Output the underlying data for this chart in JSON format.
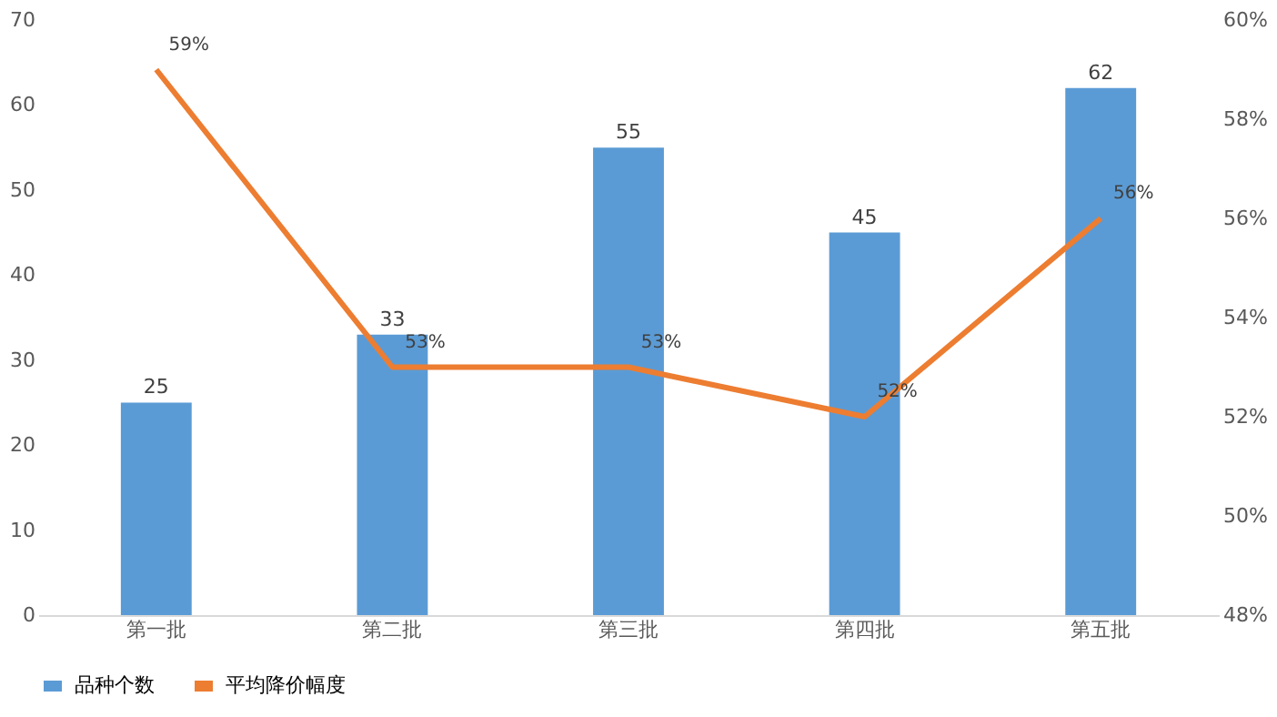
{
  "chart_data": {
    "type": "bar",
    "categories": [
      "第一批",
      "第二批",
      "第三批",
      "第四批",
      "第五批"
    ],
    "series": [
      {
        "name": "品种个数",
        "color": "#5b9bd5",
        "values": [
          25,
          33,
          55,
          45,
          62
        ],
        "value_labels": [
          "25",
          "33",
          "55",
          "45",
          "62"
        ]
      },
      {
        "name": "平均降价幅度",
        "type": "line",
        "axis": "y2",
        "color": "#ed7d31",
        "values": [
          59,
          53,
          53,
          52,
          56
        ],
        "value_labels": [
          "59%",
          "53%",
          "53%",
          "52%",
          "56%"
        ]
      }
    ],
    "ylim": [
      0,
      70
    ],
    "yticks": [
      0,
      10,
      20,
      30,
      40,
      50,
      60,
      70
    ],
    "y2lim": [
      48,
      60
    ],
    "y2ticks": [
      {
        "value": 48,
        "label": "48%"
      },
      {
        "value": 50,
        "label": "50%"
      },
      {
        "value": 52,
        "label": "52%"
      },
      {
        "value": 54,
        "label": "54%"
      },
      {
        "value": 56,
        "label": "56%"
      },
      {
        "value": 58,
        "label": "58%"
      },
      {
        "value": 60,
        "label": "60%"
      }
    ],
    "legend": "bottom",
    "grid": false,
    "marker": "none",
    "line_style": "solid"
  }
}
